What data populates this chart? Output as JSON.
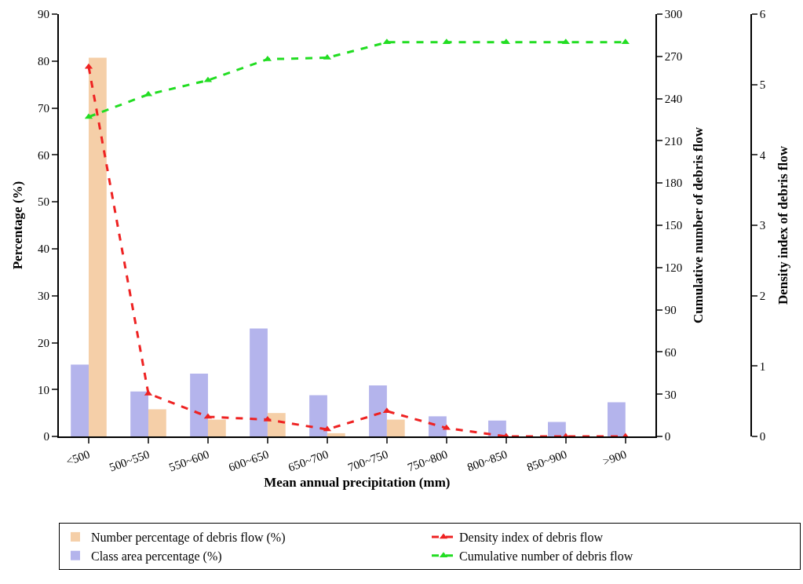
{
  "chart_data": {
    "type": "bar",
    "xlabel": "Mean annual precipitation (mm)",
    "ylabel": "Percentage (%)",
    "y2label": "Cumulative number of debris flow",
    "y3label": "Density index of debris flow",
    "categories": [
      "<500",
      "500~550",
      "550~600",
      "600~650",
      "650~700",
      "700~750",
      "750~800",
      "800~850",
      "850~900",
      ">900"
    ],
    "series": [
      {
        "name": "Number percentage of debris flow (%)",
        "color": "#f5cfa8",
        "values": [
          80.7,
          5.8,
          3.6,
          5.0,
          0.7,
          3.6,
          0,
          0,
          0,
          0
        ]
      },
      {
        "name": "Density index of debris flow",
        "type": "line",
        "axis": "y3",
        "color": "#ee2222",
        "values": [
          5.25,
          0.61,
          0.28,
          0.24,
          0.1,
          0.36,
          0.12,
          0,
          0,
          0
        ]
      },
      {
        "name": "Class area percentage (%)",
        "color": "#b4b4ec",
        "values": [
          15.3,
          9.6,
          13.4,
          23.0,
          8.8,
          10.9,
          4.3,
          3.4,
          3.1,
          7.3
        ]
      },
      {
        "name": "Cumulative number of debris flow",
        "type": "line",
        "axis": "y2",
        "color": "#22dd22",
        "values": [
          227,
          243,
          253,
          268,
          269,
          280,
          280,
          280,
          280,
          280
        ]
      }
    ],
    "ylim": [
      0,
      90
    ],
    "yticks": [
      0,
      10,
      20,
      30,
      40,
      50,
      60,
      70,
      80,
      90
    ],
    "y2lim": [
      0,
      300
    ],
    "y2ticks": [
      0,
      30,
      60,
      90,
      120,
      150,
      180,
      210,
      240,
      270,
      300
    ],
    "y3lim": [
      0,
      6
    ],
    "y3ticks": [
      0,
      1,
      2,
      3,
      4,
      5,
      6
    ],
    "marker": "triangle",
    "line_style": "dashed",
    "legend": "bottom"
  }
}
